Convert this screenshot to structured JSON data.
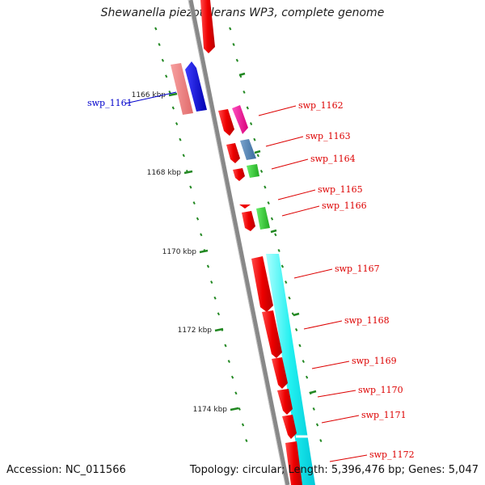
{
  "title": "Shewanella piezotolerans WP3, complete genome",
  "accession": "Accession: NC_011566",
  "summary": "Topology: circular; Length: 5,396,476 bp; Genes: 5,047",
  "ticks": [
    {
      "label": "1166 kbp"
    },
    {
      "label": "1168 kbp"
    },
    {
      "label": "1170 kbp"
    },
    {
      "label": "1172 kbp"
    },
    {
      "label": "1174 kbp"
    }
  ],
  "genes": [
    {
      "label": "swp_1161",
      "color": "#0000cc"
    },
    {
      "label": "swp_1162",
      "color": "#dd0000"
    },
    {
      "label": "swp_1163",
      "color": "#dd0000"
    },
    {
      "label": "swp_1164",
      "color": "#dd0000"
    },
    {
      "label": "swp_1165",
      "color": "#dd0000"
    },
    {
      "label": "swp_1166",
      "color": "#dd0000"
    },
    {
      "label": "swp_1167",
      "color": "#dd0000"
    },
    {
      "label": "swp_1168",
      "color": "#dd0000"
    },
    {
      "label": "swp_1169",
      "color": "#dd0000"
    },
    {
      "label": "swp_1170",
      "color": "#dd0000"
    },
    {
      "label": "swp_1171",
      "color": "#dd0000"
    },
    {
      "label": "swp_1172",
      "color": "#dd0000"
    }
  ]
}
